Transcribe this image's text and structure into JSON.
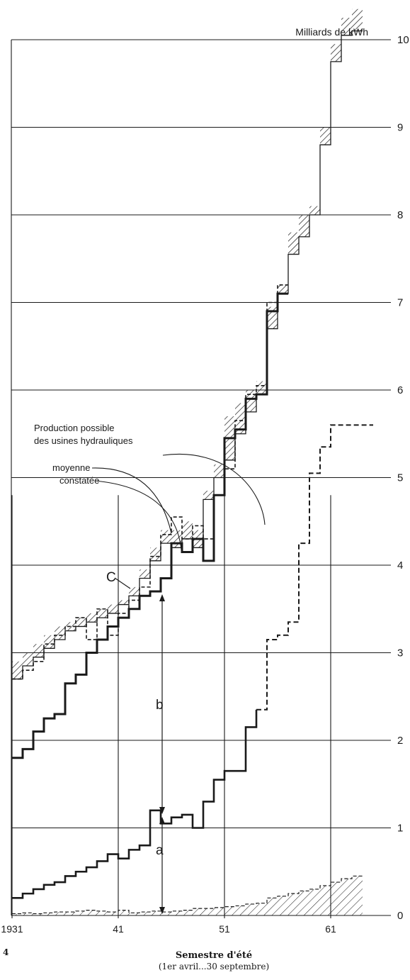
{
  "chart_data": {
    "type": "line",
    "title": "",
    "ylabel": "Milliards de kWh",
    "xlabel": "Semestre d'été",
    "xlabel_sub": "(1er avril...30 septembre)",
    "x_tick_labels": [
      "1931",
      "41",
      "51",
      "61"
    ],
    "x_tick_years": [
      1931,
      1941,
      1951,
      1961
    ],
    "y_tick_labels": [
      "0",
      "1",
      "2",
      "3",
      "4",
      "5",
      "6",
      "7",
      "8",
      "9",
      "10"
    ],
    "ylim": [
      0,
      10
    ],
    "xlim": [
      1931,
      1966
    ],
    "grid": true,
    "page_number": "4",
    "annotations": {
      "production_title_1": "Production possible",
      "production_title_2": "des usines hydrauliques",
      "moyenne": "moyenne",
      "constatee": "constatée",
      "letter_a": "a",
      "letter_b": "b",
      "letter_c": "C"
    },
    "series": [
      {
        "key": "possible_production",
        "style": "hatched-band",
        "years": [
          1931,
          1932,
          1933,
          1934,
          1935,
          1936,
          1937,
          1938,
          1939,
          1940,
          1941,
          1942,
          1943,
          1944,
          1945,
          1946,
          1947,
          1948,
          1949,
          1950,
          1951,
          1952,
          1953,
          1954,
          1955,
          1956,
          1957,
          1958,
          1959,
          1960,
          1961,
          1962,
          1963
        ],
        "lower": [
          2.7,
          2.85,
          2.95,
          3.05,
          3.15,
          3.25,
          3.3,
          3.35,
          3.4,
          3.45,
          3.55,
          3.65,
          3.85,
          4.05,
          4.25,
          4.2,
          4.3,
          4.2,
          4.75,
          5.0,
          5.2,
          5.5,
          5.75,
          5.95,
          6.7,
          7.1,
          7.55,
          7.75,
          8.0,
          8.8,
          9.75,
          10.05,
          10.1
        ],
        "upper": [
          2.9,
          3.0,
          3.1,
          3.2,
          3.3,
          3.35,
          3.4,
          3.45,
          3.5,
          3.55,
          3.6,
          3.75,
          3.95,
          4.2,
          4.4,
          4.4,
          4.5,
          4.4,
          4.85,
          5.15,
          5.7,
          5.85,
          6.0,
          6.1,
          6.95,
          7.2,
          7.8,
          8.0,
          8.1,
          9.0,
          9.95,
          10.25,
          10.35
        ]
      },
      {
        "key": "moyenne",
        "style": "dashed",
        "years": [
          1931,
          1932,
          1933,
          1934,
          1935,
          1936,
          1937,
          1938,
          1939,
          1940,
          1941,
          1942,
          1943,
          1944,
          1945,
          1946,
          1947,
          1948,
          1949,
          1950,
          1951,
          1952,
          1953,
          1954,
          1955,
          1956
        ],
        "values": [
          2.7,
          2.8,
          2.9,
          3.1,
          3.2,
          3.3,
          3.4,
          3.15,
          3.5,
          3.2,
          3.45,
          3.6,
          3.75,
          4.1,
          4.35,
          4.55,
          4.3,
          4.45,
          4.3,
          4.8,
          5.1,
          5.65,
          5.95,
          6.05,
          7.0,
          7.2
        ]
      },
      {
        "key": "constatee",
        "style": "solid-thick",
        "years": [
          1931,
          1932,
          1933,
          1934,
          1935,
          1936,
          1937,
          1938,
          1939,
          1940,
          1941,
          1942,
          1943,
          1944,
          1945,
          1946,
          1947,
          1948,
          1949,
          1950,
          1951,
          1952,
          1953,
          1954,
          1955,
          1956
        ],
        "values": [
          1.8,
          1.9,
          2.1,
          2.25,
          2.3,
          2.65,
          2.75,
          3.0,
          3.15,
          3.3,
          3.4,
          3.5,
          3.65,
          3.7,
          3.85,
          4.25,
          4.15,
          4.3,
          4.05,
          4.8,
          5.45,
          5.55,
          5.9,
          5.95,
          6.9,
          7.1
        ]
      },
      {
        "key": "export",
        "style": "solid-then-dashed",
        "years": [
          1931,
          1932,
          1933,
          1934,
          1935,
          1936,
          1937,
          1938,
          1939,
          1940,
          1941,
          1942,
          1943,
          1944,
          1945,
          1946,
          1947,
          1948,
          1949,
          1950,
          1951,
          1952,
          1953,
          1954,
          1955,
          1956,
          1957,
          1958,
          1959,
          1960,
          1961,
          1962,
          1963,
          1964
        ],
        "values": [
          0.2,
          0.25,
          0.3,
          0.35,
          0.38,
          0.45,
          0.5,
          0.55,
          0.62,
          0.7,
          0.65,
          0.75,
          0.8,
          1.2,
          1.05,
          1.12,
          1.15,
          1.0,
          1.3,
          1.55,
          1.65,
          1.65,
          2.15,
          2.35,
          3.15,
          3.2,
          3.35,
          4.25,
          5.05,
          5.35,
          5.6,
          5.6,
          5.6,
          5.6
        ],
        "dashed_from_index": 23
      },
      {
        "key": "bottom_hatch",
        "style": "hatched-area",
        "years": [
          1931,
          1932,
          1933,
          1934,
          1935,
          1936,
          1937,
          1938,
          1939,
          1940,
          1941,
          1942,
          1943,
          1944,
          1945,
          1946,
          1947,
          1948,
          1949,
          1950,
          1951,
          1952,
          1953,
          1954,
          1955,
          1956,
          1957,
          1958,
          1959,
          1960,
          1961,
          1962,
          1963
        ],
        "values": [
          0.02,
          0.03,
          0.02,
          0.03,
          0.04,
          0.04,
          0.05,
          0.06,
          0.05,
          0.04,
          0.06,
          0.03,
          0.04,
          0.05,
          0.04,
          0.05,
          0.06,
          0.08,
          0.08,
          0.09,
          0.1,
          0.11,
          0.13,
          0.14,
          0.2,
          0.22,
          0.25,
          0.28,
          0.3,
          0.34,
          0.38,
          0.42,
          0.45
        ]
      }
    ]
  }
}
